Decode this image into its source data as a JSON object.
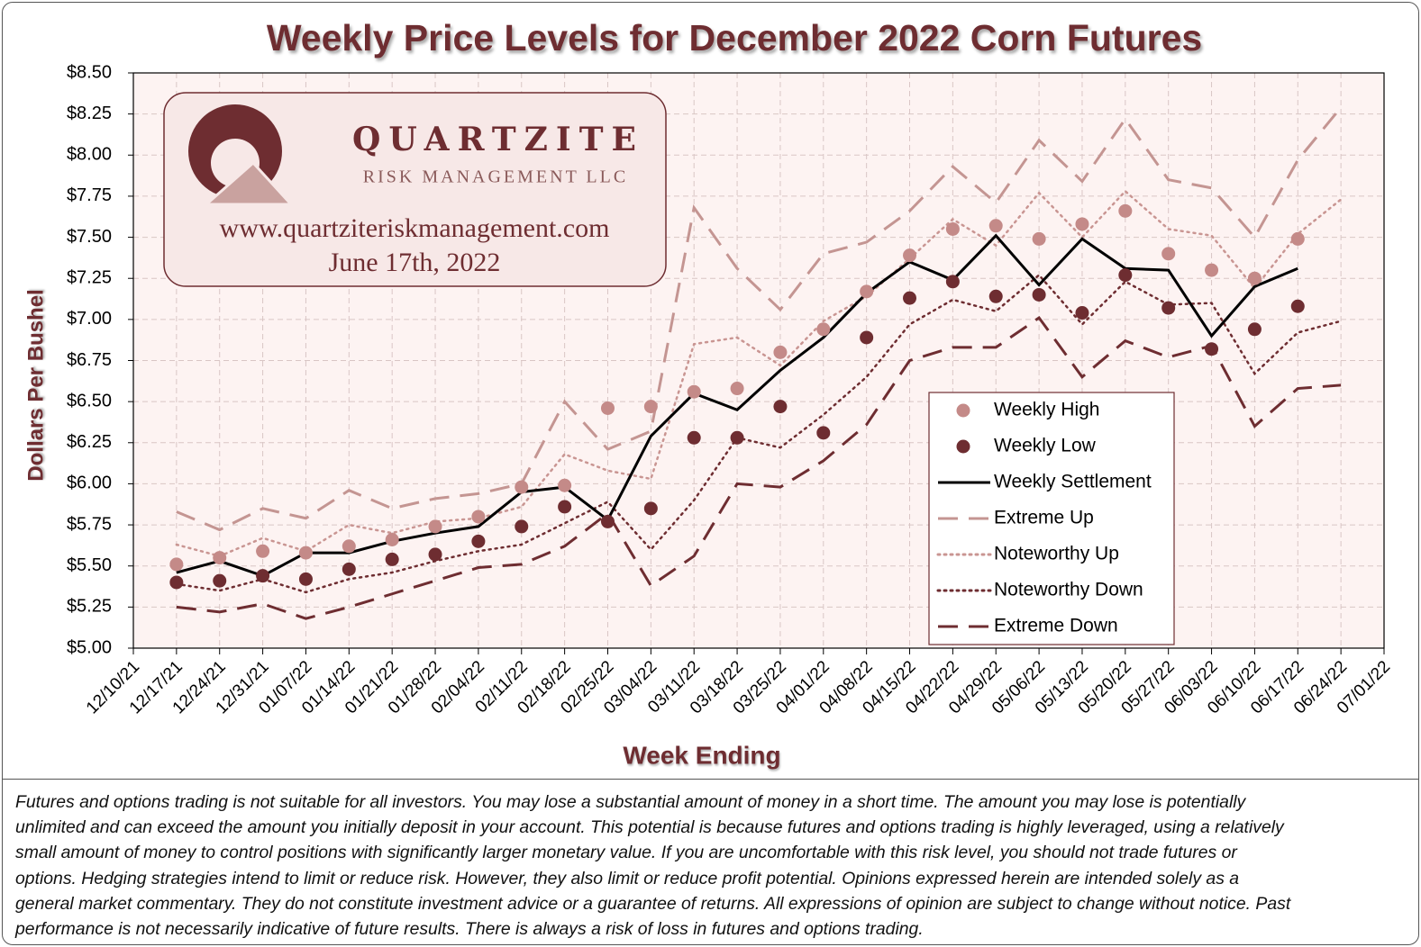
{
  "chart_data": {
    "type": "line",
    "title": "Weekly Price Levels for December 2022 Corn Futures",
    "y_label": "Dollars Per Bushel",
    "x_label": "Week Ending",
    "categories": [
      "12/10/21",
      "12/17/21",
      "12/24/21",
      "12/31/21",
      "01/07/22",
      "01/14/22",
      "01/21/22",
      "01/28/22",
      "02/04/22",
      "02/11/22",
      "02/18/22",
      "02/25/22",
      "03/04/22",
      "03/11/22",
      "03/18/22",
      "03/25/22",
      "04/01/22",
      "04/08/22",
      "04/15/22",
      "04/22/22",
      "04/29/22",
      "05/06/22",
      "05/13/22",
      "05/20/22",
      "05/27/22",
      "06/03/22",
      "06/10/22",
      "06/17/22",
      "06/24/22",
      "07/01/22"
    ],
    "series": [
      {
        "name": "Weekly High",
        "color": "#c48a88",
        "style": "markers",
        "values": [
          null,
          5.51,
          5.55,
          5.59,
          5.58,
          5.62,
          5.66,
          5.74,
          5.8,
          5.98,
          5.99,
          6.46,
          6.47,
          6.56,
          6.58,
          6.8,
          6.94,
          7.17,
          7.39,
          7.55,
          7.57,
          7.49,
          7.58,
          7.66,
          7.4,
          7.3,
          7.25,
          7.49,
          null,
          null
        ]
      },
      {
        "name": "Weekly Low",
        "color": "#6e2d31",
        "style": "markers",
        "values": [
          null,
          5.4,
          5.41,
          5.44,
          5.42,
          5.48,
          5.54,
          5.57,
          5.65,
          5.74,
          5.86,
          5.77,
          5.85,
          6.28,
          6.28,
          6.47,
          6.31,
          6.89,
          7.13,
          7.23,
          7.14,
          7.15,
          7.04,
          7.27,
          7.07,
          6.82,
          6.94,
          7.08,
          null,
          null
        ]
      },
      {
        "name": "Weekly Settlement",
        "color": "#000000",
        "style": "solid",
        "values": [
          null,
          5.46,
          5.53,
          5.44,
          5.58,
          5.58,
          5.65,
          5.7,
          5.74,
          5.95,
          5.98,
          5.78,
          6.29,
          6.55,
          6.45,
          6.69,
          6.89,
          7.16,
          7.35,
          7.24,
          7.51,
          7.21,
          7.49,
          7.31,
          7.3,
          6.9,
          7.2,
          7.31,
          null,
          null
        ]
      },
      {
        "name": "Extreme Up",
        "color": "#c49592",
        "style": "dashed",
        "values": [
          null,
          5.83,
          5.72,
          5.85,
          5.79,
          5.96,
          5.85,
          5.91,
          5.94,
          6.0,
          6.5,
          6.21,
          6.32,
          7.68,
          7.31,
          7.06,
          7.4,
          7.47,
          7.66,
          7.93,
          7.71,
          8.09,
          7.84,
          8.22,
          7.85,
          7.8,
          7.5,
          7.97,
          8.29,
          null
        ]
      },
      {
        "name": "Noteworthy Up",
        "color": "#c99592",
        "style": "dotted",
        "values": [
          null,
          5.63,
          5.56,
          5.67,
          5.59,
          5.75,
          5.7,
          5.77,
          5.79,
          5.86,
          6.18,
          6.08,
          6.03,
          6.85,
          6.89,
          6.72,
          6.99,
          7.14,
          7.37,
          7.61,
          7.45,
          7.77,
          7.5,
          7.78,
          7.55,
          7.51,
          7.19,
          7.52,
          7.73,
          null
        ]
      },
      {
        "name": "Noteworthy Down",
        "color": "#6e2d31",
        "style": "dotted",
        "values": [
          null,
          5.39,
          5.35,
          5.42,
          5.34,
          5.42,
          5.46,
          5.53,
          5.59,
          5.63,
          5.76,
          5.89,
          5.6,
          5.9,
          6.28,
          6.22,
          6.42,
          6.65,
          6.97,
          7.12,
          7.05,
          7.27,
          6.97,
          7.23,
          7.09,
          7.1,
          6.67,
          6.92,
          6.99,
          null
        ]
      },
      {
        "name": "Extreme Down",
        "color": "#6e2d31",
        "style": "dashed",
        "values": [
          null,
          5.25,
          5.22,
          5.27,
          5.18,
          5.25,
          5.33,
          5.41,
          5.49,
          5.51,
          5.62,
          5.82,
          5.38,
          5.56,
          6.0,
          5.98,
          6.14,
          6.36,
          6.75,
          6.83,
          6.83,
          7.01,
          6.65,
          6.87,
          6.77,
          6.84,
          6.35,
          6.58,
          6.6,
          null
        ]
      }
    ],
    "ylim": [
      5,
      8.5
    ],
    "yticks": [
      {
        "value": 5,
        "label": "$5.00"
      },
      {
        "value": 5.25,
        "label": "$5.25"
      },
      {
        "value": 5.5,
        "label": "$5.50"
      },
      {
        "value": 5.75,
        "label": "$5.75"
      },
      {
        "value": 6,
        "label": "$6.00"
      },
      {
        "value": 6.25,
        "label": "$6.25"
      },
      {
        "value": 6.5,
        "label": "$6.50"
      },
      {
        "value": 6.75,
        "label": "$6.75"
      },
      {
        "value": 7,
        "label": "$7.00"
      },
      {
        "value": 7.25,
        "label": "$7.25"
      },
      {
        "value": 7.5,
        "label": "$7.50"
      },
      {
        "value": 7.75,
        "label": "$7.75"
      },
      {
        "value": 8,
        "label": "$8.00"
      },
      {
        "value": 8.25,
        "label": "$8.25"
      },
      {
        "value": 8.5,
        "label": "$8.50"
      }
    ],
    "grid": true,
    "legend": "lower right"
  },
  "logo": {
    "name": "QUARTZITE",
    "tagline": "RISK MANAGEMENT LLC",
    "url": "www.quartziteriskmanagement.com",
    "date": "June 17th, 2022"
  },
  "disclaimer": [
    "Futures and options trading is not suitable for all investors. You may lose a substantial amount of money in a short time. The amount you may lose is potentially",
    "unlimited and can exceed the amount you initially deposit in your account. This potential is because futures and options trading is highly leveraged, using a relatively",
    "small amount of money to control positions with significantly larger monetary value. If you are uncomfortable with this risk level, you should not trade futures or",
    "options. Hedging strategies intend to limit or reduce risk.  However, they also limit or reduce profit potential. Opinions expressed herein are intended solely as a",
    "general market commentary. They do not constitute investment advice or a guarantee of returns. All expressions of opinion are subject to change without notice. Past",
    "performance is not necessarily indicative of future results. There is always a risk of loss in futures and options trading."
  ]
}
